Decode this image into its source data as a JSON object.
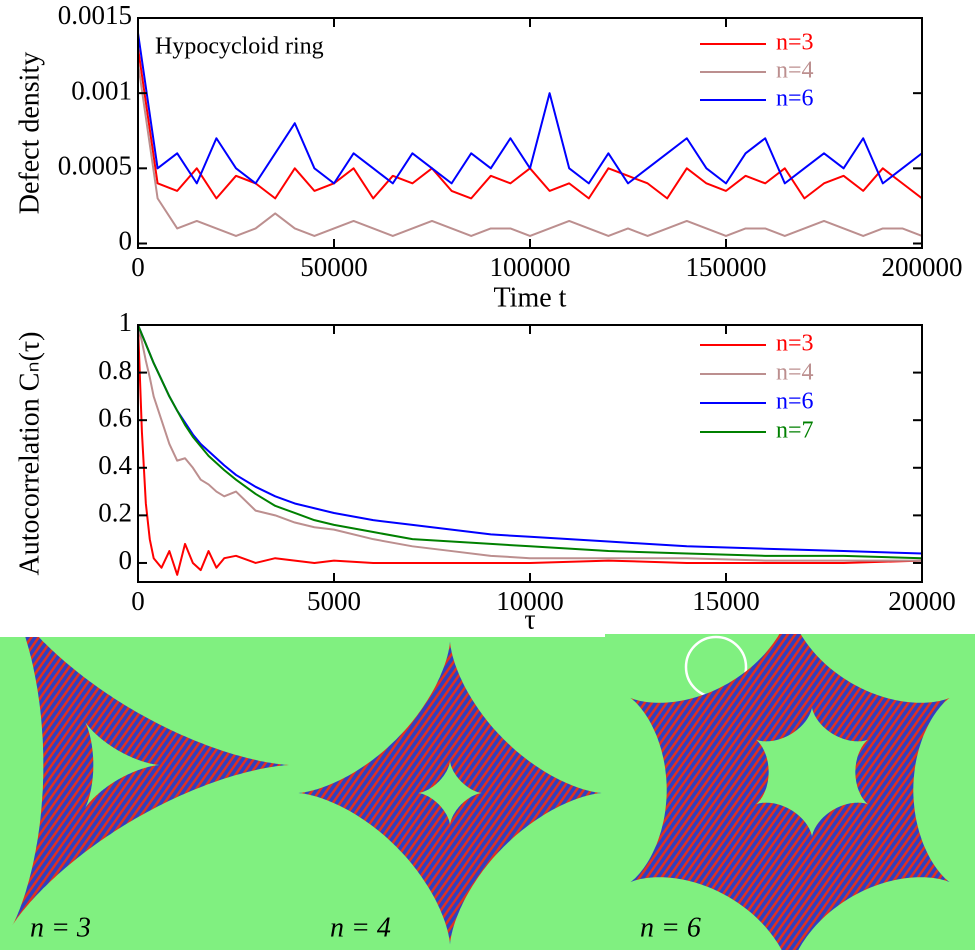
{
  "chart_data": [
    {
      "type": "line",
      "ylabel": "Defect density",
      "xlabel": "Time t",
      "annotation": "Hypocycloid ring",
      "legend": "upper right",
      "x": [
        0,
        5000,
        10000,
        15000,
        20000,
        25000,
        30000,
        35000,
        40000,
        45000,
        50000,
        55000,
        60000,
        65000,
        70000,
        75000,
        80000,
        85000,
        90000,
        95000,
        100000,
        105000,
        110000,
        115000,
        120000,
        125000,
        130000,
        135000,
        140000,
        145000,
        150000,
        155000,
        160000,
        165000,
        170000,
        175000,
        180000,
        185000,
        190000,
        195000,
        200000
      ],
      "series": [
        {
          "name": "n=3",
          "color": "#ff0000",
          "values": [
            0.0013,
            0.0004,
            0.00035,
            0.0005,
            0.0003,
            0.00045,
            0.0004,
            0.0003,
            0.0005,
            0.00035,
            0.0004,
            0.0005,
            0.0003,
            0.00045,
            0.0004,
            0.0005,
            0.00035,
            0.0003,
            0.00045,
            0.0004,
            0.0005,
            0.00035,
            0.0004,
            0.0003,
            0.0005,
            0.00045,
            0.0004,
            0.0003,
            0.0005,
            0.0004,
            0.00035,
            0.00045,
            0.0004,
            0.0005,
            0.0003,
            0.0004,
            0.00045,
            0.00035,
            0.0005,
            0.0004,
            0.0003
          ]
        },
        {
          "name": "n=4",
          "color": "#bc8f8f",
          "values": [
            0.0012,
            0.0003,
            0.0001,
            0.00015,
            0.0001,
            5e-05,
            0.0001,
            0.0002,
            0.0001,
            5e-05,
            0.0001,
            0.00015,
            0.0001,
            5e-05,
            0.0001,
            0.00015,
            0.0001,
            5e-05,
            0.0001,
            0.0001,
            5e-05,
            0.0001,
            0.00015,
            0.0001,
            5e-05,
            0.0001,
            5e-05,
            0.0001,
            0.00015,
            0.0001,
            5e-05,
            0.0001,
            0.0001,
            5e-05,
            0.0001,
            0.00015,
            0.0001,
            5e-05,
            0.0001,
            0.0001,
            5e-05
          ]
        },
        {
          "name": "n=6",
          "color": "#0000ff",
          "values": [
            0.0014,
            0.0005,
            0.0006,
            0.0004,
            0.0007,
            0.0005,
            0.0004,
            0.0006,
            0.0008,
            0.0005,
            0.0004,
            0.0006,
            0.0005,
            0.0004,
            0.0006,
            0.0005,
            0.0004,
            0.0006,
            0.0005,
            0.0007,
            0.0005,
            0.001,
            0.0005,
            0.0004,
            0.0006,
            0.0004,
            0.0005,
            0.0006,
            0.0007,
            0.0005,
            0.0004,
            0.0006,
            0.0007,
            0.0004,
            0.0005,
            0.0006,
            0.0005,
            0.0007,
            0.0004,
            0.0005,
            0.0006
          ]
        }
      ],
      "xlim": [
        0,
        200000
      ],
      "ylim": [
        -3e-05,
        0.0015
      ],
      "xticks": [
        0,
        50000,
        100000,
        150000,
        200000
      ],
      "yticks": [
        0,
        0.0005,
        0.001,
        0.0015
      ]
    },
    {
      "type": "line",
      "ylabel": "Autocorrelation Cₙ(τ)",
      "xlabel": "τ",
      "legend": "upper right",
      "x": [
        0,
        100,
        200,
        300,
        400,
        600,
        800,
        1000,
        1200,
        1400,
        1600,
        1800,
        2000,
        2200,
        2500,
        3000,
        3500,
        4000,
        4500,
        5000,
        6000,
        7000,
        8000,
        9000,
        10000,
        12000,
        14000,
        16000,
        18000,
        20000
      ],
      "series": [
        {
          "name": "n=3",
          "color": "#ff0000",
          "values": [
            1,
            0.55,
            0.25,
            0.1,
            0.02,
            -0.02,
            0.05,
            -0.05,
            0.08,
            0.0,
            -0.03,
            0.05,
            -0.02,
            0.02,
            0.03,
            0.0,
            0.02,
            0.01,
            0.0,
            0.01,
            0.0,
            0.0,
            0.0,
            0.0,
            0.0,
            0.01,
            0.0,
            0.0,
            0.0,
            0.01
          ]
        },
        {
          "name": "n=4",
          "color": "#bc8f8f",
          "values": [
            1,
            0.93,
            0.85,
            0.78,
            0.7,
            0.6,
            0.5,
            0.43,
            0.44,
            0.4,
            0.35,
            0.33,
            0.3,
            0.28,
            0.3,
            0.22,
            0.2,
            0.17,
            0.15,
            0.14,
            0.1,
            0.07,
            0.05,
            0.03,
            0.02,
            0.02,
            0.02,
            0.01,
            0.01,
            0.01
          ]
        },
        {
          "name": "n=6",
          "color": "#0000ff",
          "values": [
            1,
            0.96,
            0.92,
            0.88,
            0.84,
            0.77,
            0.7,
            0.64,
            0.59,
            0.54,
            0.5,
            0.47,
            0.44,
            0.41,
            0.37,
            0.32,
            0.28,
            0.25,
            0.23,
            0.21,
            0.18,
            0.16,
            0.14,
            0.12,
            0.11,
            0.09,
            0.07,
            0.06,
            0.05,
            0.04
          ]
        },
        {
          "name": "n=7",
          "color": "#008000",
          "values": [
            1,
            0.96,
            0.92,
            0.88,
            0.84,
            0.77,
            0.7,
            0.64,
            0.58,
            0.53,
            0.49,
            0.45,
            0.42,
            0.39,
            0.35,
            0.29,
            0.24,
            0.21,
            0.18,
            0.16,
            0.13,
            0.1,
            0.09,
            0.08,
            0.07,
            0.05,
            0.04,
            0.03,
            0.03,
            0.02
          ]
        }
      ],
      "xlim": [
        0,
        20000
      ],
      "ylim": [
        -0.08,
        1
      ],
      "xticks": [
        0,
        5000,
        10000,
        15000,
        20000
      ],
      "yticks": [
        0,
        0.2,
        0.4,
        0.6,
        0.8,
        1
      ]
    }
  ],
  "panels": [
    {
      "label": "n = 3"
    },
    {
      "label": "n = 4"
    },
    {
      "label": "n = 6"
    }
  ]
}
